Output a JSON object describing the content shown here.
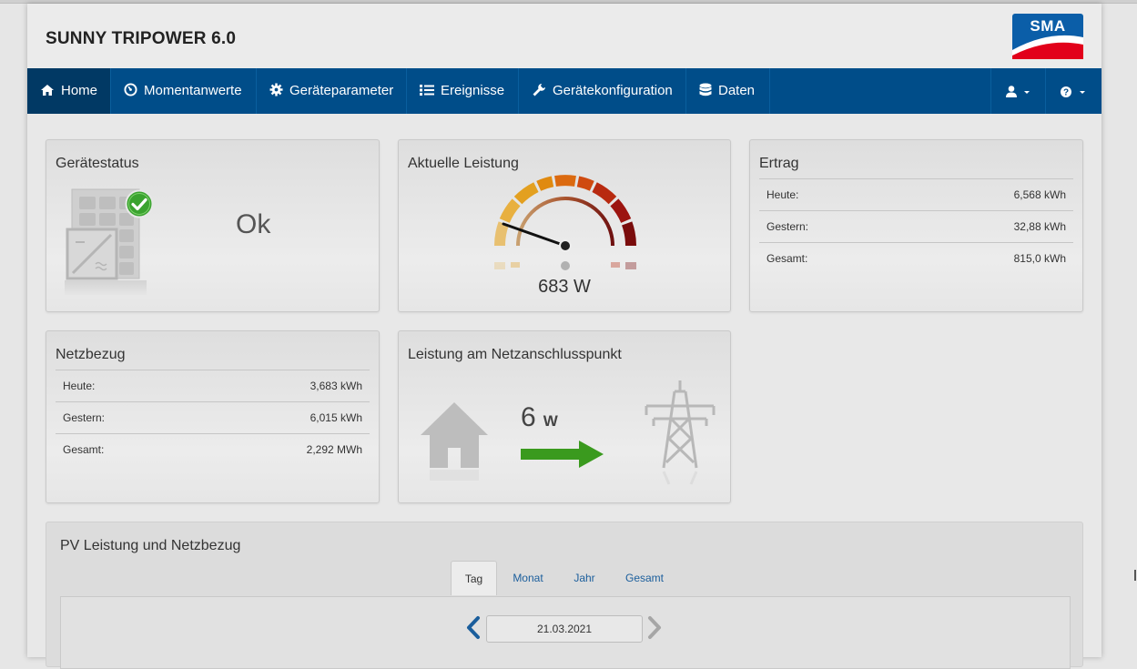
{
  "app": {
    "title": "SUNNY TRIPOWER 6.0",
    "logo_text": "SMA"
  },
  "colors": {
    "nav_bg": "#004d89",
    "nav_active": "#013964",
    "ok_green": "#3aa32f",
    "arrow_green": "#3a9a1e",
    "logo_red": "#e2001a"
  },
  "nav": {
    "items": [
      {
        "label": "Home",
        "icon": "home-icon",
        "active": true
      },
      {
        "label": "Momentanwerte",
        "icon": "gauge-icon"
      },
      {
        "label": "Geräteparameter",
        "icon": "gear-icon"
      },
      {
        "label": "Ereignisse",
        "icon": "list-icon"
      },
      {
        "label": "Gerätekonfiguration",
        "icon": "wrench-icon"
      },
      {
        "label": "Daten",
        "icon": "database-icon"
      }
    ],
    "right": [
      {
        "icon": "user-icon"
      },
      {
        "icon": "help-icon"
      }
    ]
  },
  "status": {
    "title": "Gerätestatus",
    "value": "Ok"
  },
  "power": {
    "title": "Aktuelle Leistung",
    "value": "683 W"
  },
  "yield": {
    "title": "Ertrag",
    "rows": [
      {
        "label": "Heute:",
        "value": "6,568 kWh"
      },
      {
        "label": "Gestern:",
        "value": "32,88 kWh"
      },
      {
        "label": "Gesamt:",
        "value": "815,0 kWh"
      }
    ]
  },
  "grid_draw": {
    "title": "Netzbezug",
    "rows": [
      {
        "label": "Heute:",
        "value": "3,683 kWh"
      },
      {
        "label": "Gestern:",
        "value": "6,015 kWh"
      },
      {
        "label": "Gesamt:",
        "value": "2,292 MWh"
      }
    ]
  },
  "grid_point": {
    "title": "Leistung am Netzanschlusspunkt",
    "value": "6",
    "unit": "W"
  },
  "pv_chart": {
    "title": "PV Leistung und Netzbezug",
    "tabs": [
      {
        "label": "Tag",
        "active": true
      },
      {
        "label": "Monat"
      },
      {
        "label": "Jahr"
      },
      {
        "label": "Gesamt"
      }
    ],
    "date": "21.03.2021"
  }
}
